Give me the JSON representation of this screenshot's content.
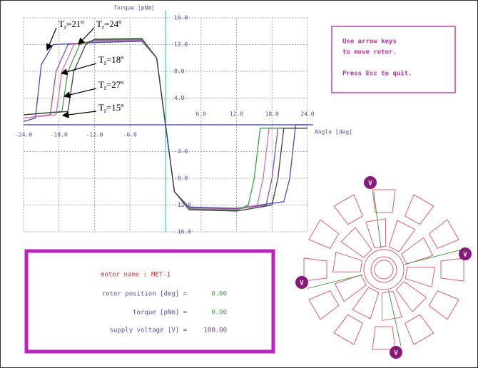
{
  "chart_data": {
    "type": "line",
    "x_label": "Angle [deg]",
    "y_label": "Torque [pNm]",
    "xlim": [
      -24,
      24
    ],
    "ylim": [
      -16,
      16
    ],
    "grid": true,
    "xticks": [
      {
        "value": -24,
        "label": "-24.0"
      },
      {
        "value": -18,
        "label": "-18.0"
      },
      {
        "value": -12,
        "label": "-12.0"
      },
      {
        "value": -6,
        "label": "-6.0"
      },
      {
        "value": 6,
        "label": "6.0"
      },
      {
        "value": 12,
        "label": "12.0"
      },
      {
        "value": 18,
        "label": "18.0"
      },
      {
        "value": 24,
        "label": "24.0"
      }
    ],
    "yticks": [
      {
        "value": 16,
        "label": "16.0"
      },
      {
        "value": 12,
        "label": "12.0"
      },
      {
        "value": 8,
        "label": "8.0"
      },
      {
        "value": 4,
        "label": "4.0"
      },
      {
        "value": -4,
        "label": "-4.0"
      },
      {
        "value": -8,
        "label": "-8.0"
      },
      {
        "value": -12,
        "label": "-12.0"
      },
      {
        "value": -16,
        "label": "-16.0"
      }
    ],
    "series": [
      {
        "color": "#4848c8",
        "x": [
          -24,
          -22,
          -21,
          -19,
          -12,
          -4,
          -1.5,
          0,
          1.5,
          4,
          12,
          20,
          21,
          22,
          24
        ],
        "values": [
          0.5,
          1,
          9,
          12,
          12.3,
          12.5,
          10,
          0,
          -10,
          -12.3,
          -12.5,
          -11.5,
          -8,
          0,
          0
        ]
      },
      {
        "color": "#9050b0",
        "x": [
          -24,
          -19.5,
          -18.5,
          -16.5,
          -12,
          -4,
          -1.5,
          0,
          1.5,
          4,
          12,
          17,
          18,
          19,
          24
        ],
        "values": [
          1,
          1.5,
          8,
          12,
          12.5,
          12.6,
          10,
          0,
          -10,
          -12.4,
          -12.6,
          -12,
          -8,
          -0.5,
          -0.5
        ]
      },
      {
        "color": "#e070a8",
        "x": [
          -24,
          -18.5,
          -17.5,
          -15.5,
          -12,
          -4,
          -1.5,
          0,
          1.5,
          4,
          12,
          15.5,
          16.5,
          17.5,
          24
        ],
        "values": [
          1,
          1.5,
          8,
          12,
          12.6,
          12.7,
          10,
          0,
          -10,
          -12.5,
          -12.7,
          -12,
          -8,
          -0.5,
          -0.5
        ]
      },
      {
        "color": "#40a040",
        "x": [
          -24,
          -17.5,
          -16.5,
          -14.5,
          -12,
          -4,
          -1.5,
          0,
          1.5,
          4,
          12,
          14,
          15,
          16,
          24
        ],
        "values": [
          1.5,
          2,
          8,
          12,
          12.7,
          12.8,
          10,
          0,
          -10,
          -12.6,
          -12.8,
          -12,
          -8,
          -0.5,
          -0.5
        ]
      },
      {
        "color": "#404040",
        "x": [
          -24,
          -16.5,
          -15.5,
          -13.5,
          -12,
          -4,
          -1.5,
          0,
          1.5,
          4,
          12,
          18,
          19,
          20,
          24
        ],
        "values": [
          1.5,
          2,
          8,
          12,
          12.8,
          12.9,
          10,
          0,
          -10,
          -12.7,
          -12.9,
          -12,
          -8,
          -0.5,
          -0.5
        ]
      }
    ],
    "annotations": [
      {
        "base": "T",
        "sub": "r",
        "text": "=21º"
      },
      {
        "base": "T",
        "sub": "r",
        "text": "=24º"
      },
      {
        "base": "T",
        "sub": "r",
        "text": "=18º"
      },
      {
        "base": "T",
        "sub": "r",
        "text": "=27º"
      },
      {
        "base": "T",
        "sub": "r",
        "text": "=15º"
      }
    ]
  },
  "help": [
    "Use arrow keys",
    "to move rotor.",
    "Press Esc to quit."
  ],
  "motor_panel": {
    "name_label": "motor name :",
    "name": "MET-1",
    "rows": [
      {
        "label": "rotor position [deg] =",
        "value": "0.00"
      },
      {
        "label": "torque [pNm] =",
        "value": "0.00"
      },
      {
        "label": "supply voltage [V] =",
        "value": "100.00"
      }
    ]
  },
  "phase_markers": [
    "V",
    "V",
    "V",
    "V"
  ]
}
